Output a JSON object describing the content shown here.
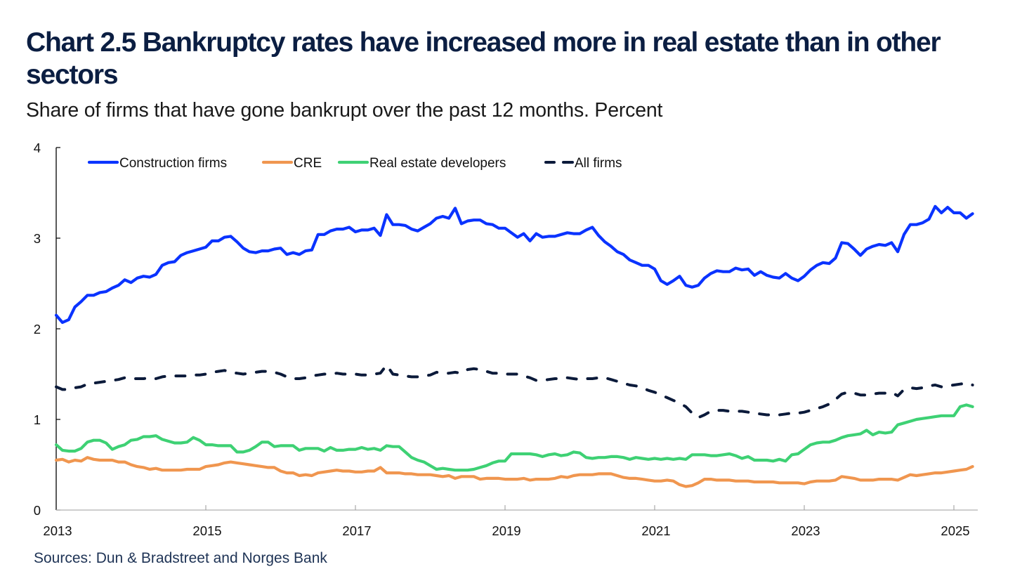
{
  "chart_data": {
    "type": "line",
    "title": "Chart 2.5 Bankruptcy rates have increased more in real estate than in other sectors",
    "subtitle": "Share of firms that have gone bankrupt over the past 12 months. Percent",
    "source": "Sources: Dun & Bradstreet and Norges Bank",
    "xlabel": "",
    "ylabel": "",
    "x_start": "2013-01",
    "x_frequency": "monthly",
    "xlim": [
      2013.0,
      2025.4
    ],
    "ylim": [
      0,
      4
    ],
    "yticks": [
      "0",
      "1",
      "2",
      "3",
      "4"
    ],
    "xticks": [
      "2013",
      "2015",
      "2017",
      "2019",
      "2021",
      "2023",
      "2025"
    ],
    "xtick_values": [
      2013,
      2015,
      2017,
      2019,
      2021,
      2023,
      2025
    ],
    "grid": false,
    "legend_position": "top-left",
    "series": [
      {
        "name": "Construction firms",
        "color": "#0a33ff",
        "dashed": false,
        "values": [
          2.15,
          2.07,
          2.1,
          2.24,
          2.3,
          2.37,
          2.37,
          2.4,
          2.41,
          2.45,
          2.48,
          2.54,
          2.51,
          2.56,
          2.58,
          2.57,
          2.6,
          2.7,
          2.73,
          2.74,
          2.81,
          2.84,
          2.86,
          2.88,
          2.9,
          2.97,
          2.97,
          3.01,
          3.02,
          2.96,
          2.89,
          2.85,
          2.84,
          2.86,
          2.86,
          2.88,
          2.89,
          2.82,
          2.84,
          2.82,
          2.86,
          2.87,
          3.04,
          3.04,
          3.08,
          3.1,
          3.1,
          3.12,
          3.07,
          3.09,
          3.09,
          3.11,
          3.03,
          3.26,
          3.15,
          3.15,
          3.14,
          3.1,
          3.08,
          3.12,
          3.16,
          3.22,
          3.24,
          3.22,
          3.33,
          3.16,
          3.19,
          3.2,
          3.2,
          3.16,
          3.15,
          3.11,
          3.11,
          3.06,
          3.01,
          3.05,
          2.97,
          3.05,
          3.01,
          3.02,
          3.02,
          3.04,
          3.06,
          3.05,
          3.05,
          3.09,
          3.12,
          3.03,
          2.96,
          2.91,
          2.85,
          2.82,
          2.76,
          2.73,
          2.7,
          2.7,
          2.66,
          2.53,
          2.49,
          2.53,
          2.58,
          2.48,
          2.46,
          2.48,
          2.56,
          2.61,
          2.64,
          2.63,
          2.63,
          2.67,
          2.65,
          2.66,
          2.59,
          2.63,
          2.59,
          2.57,
          2.56,
          2.61,
          2.56,
          2.53,
          2.58,
          2.65,
          2.7,
          2.73,
          2.72,
          2.78,
          2.95,
          2.94,
          2.88,
          2.81,
          2.88,
          2.91,
          2.93,
          2.92,
          2.95,
          2.85,
          3.04,
          3.15,
          3.15,
          3.17,
          3.21,
          3.35,
          3.28,
          3.34,
          3.28,
          3.28,
          3.22,
          3.27
        ]
      },
      {
        "name": "CRE",
        "color": "#f0964f",
        "dashed": false,
        "values": [
          0.55,
          0.56,
          0.53,
          0.55,
          0.54,
          0.58,
          0.56,
          0.55,
          0.55,
          0.55,
          0.53,
          0.53,
          0.5,
          0.48,
          0.47,
          0.45,
          0.46,
          0.44,
          0.44,
          0.44,
          0.44,
          0.45,
          0.45,
          0.45,
          0.48,
          0.49,
          0.5,
          0.52,
          0.53,
          0.52,
          0.51,
          0.5,
          0.49,
          0.48,
          0.47,
          0.47,
          0.43,
          0.41,
          0.41,
          0.38,
          0.39,
          0.38,
          0.41,
          0.42,
          0.43,
          0.44,
          0.43,
          0.43,
          0.42,
          0.42,
          0.43,
          0.43,
          0.47,
          0.41,
          0.41,
          0.41,
          0.4,
          0.4,
          0.39,
          0.39,
          0.39,
          0.38,
          0.37,
          0.38,
          0.35,
          0.37,
          0.37,
          0.37,
          0.34,
          0.35,
          0.35,
          0.35,
          0.34,
          0.34,
          0.34,
          0.35,
          0.33,
          0.34,
          0.34,
          0.34,
          0.35,
          0.37,
          0.36,
          0.38,
          0.39,
          0.39,
          0.39,
          0.4,
          0.4,
          0.4,
          0.38,
          0.36,
          0.35,
          0.35,
          0.34,
          0.33,
          0.32,
          0.32,
          0.33,
          0.32,
          0.28,
          0.26,
          0.27,
          0.3,
          0.34,
          0.34,
          0.33,
          0.33,
          0.33,
          0.32,
          0.32,
          0.32,
          0.31,
          0.31,
          0.31,
          0.31,
          0.3,
          0.3,
          0.3,
          0.3,
          0.29,
          0.31,
          0.32,
          0.32,
          0.32,
          0.33,
          0.37,
          0.36,
          0.35,
          0.33,
          0.33,
          0.33,
          0.34,
          0.34,
          0.34,
          0.33,
          0.36,
          0.39,
          0.38,
          0.39,
          0.4,
          0.41,
          0.41,
          0.42,
          0.43,
          0.44,
          0.45,
          0.48
        ]
      },
      {
        "name": "Real estate developers",
        "color": "#3ed174",
        "dashed": false,
        "values": [
          0.72,
          0.66,
          0.65,
          0.65,
          0.68,
          0.75,
          0.77,
          0.77,
          0.74,
          0.67,
          0.7,
          0.72,
          0.77,
          0.78,
          0.81,
          0.81,
          0.82,
          0.78,
          0.76,
          0.74,
          0.74,
          0.75,
          0.8,
          0.77,
          0.72,
          0.72,
          0.71,
          0.71,
          0.71,
          0.64,
          0.64,
          0.66,
          0.7,
          0.75,
          0.75,
          0.7,
          0.71,
          0.71,
          0.71,
          0.66,
          0.68,
          0.68,
          0.68,
          0.65,
          0.69,
          0.66,
          0.66,
          0.67,
          0.67,
          0.69,
          0.67,
          0.68,
          0.66,
          0.71,
          0.7,
          0.7,
          0.64,
          0.58,
          0.55,
          0.53,
          0.49,
          0.45,
          0.46,
          0.45,
          0.44,
          0.44,
          0.44,
          0.45,
          0.47,
          0.49,
          0.52,
          0.54,
          0.54,
          0.62,
          0.62,
          0.62,
          0.62,
          0.61,
          0.59,
          0.61,
          0.62,
          0.6,
          0.61,
          0.64,
          0.63,
          0.58,
          0.57,
          0.58,
          0.58,
          0.59,
          0.59,
          0.58,
          0.56,
          0.58,
          0.57,
          0.56,
          0.57,
          0.56,
          0.57,
          0.56,
          0.57,
          0.56,
          0.61,
          0.61,
          0.61,
          0.6,
          0.6,
          0.61,
          0.62,
          0.6,
          0.57,
          0.59,
          0.55,
          0.55,
          0.55,
          0.54,
          0.56,
          0.54,
          0.61,
          0.62,
          0.67,
          0.72,
          0.74,
          0.75,
          0.75,
          0.77,
          0.8,
          0.82,
          0.83,
          0.84,
          0.88,
          0.83,
          0.86,
          0.85,
          0.86,
          0.94,
          0.96,
          0.98,
          1.0,
          1.01,
          1.02,
          1.03,
          1.04,
          1.04,
          1.04,
          1.14,
          1.16,
          1.14
        ]
      },
      {
        "name": "All firms",
        "color": "#0b1a3a",
        "dashed": true,
        "values": [
          1.36,
          1.33,
          1.33,
          1.35,
          1.36,
          1.39,
          1.4,
          1.41,
          1.42,
          1.43,
          1.44,
          1.46,
          1.45,
          1.45,
          1.45,
          1.46,
          1.45,
          1.47,
          1.48,
          1.48,
          1.48,
          1.48,
          1.49,
          1.49,
          1.5,
          1.52,
          1.53,
          1.54,
          1.52,
          1.51,
          1.5,
          1.51,
          1.52,
          1.53,
          1.53,
          1.52,
          1.5,
          1.47,
          1.45,
          1.45,
          1.46,
          1.48,
          1.49,
          1.5,
          1.5,
          1.51,
          1.5,
          1.5,
          1.5,
          1.49,
          1.49,
          1.5,
          1.51,
          1.6,
          1.5,
          1.49,
          1.48,
          1.47,
          1.47,
          1.48,
          1.49,
          1.52,
          1.51,
          1.51,
          1.52,
          1.51,
          1.55,
          1.56,
          1.55,
          1.53,
          1.51,
          1.51,
          1.5,
          1.5,
          1.5,
          1.48,
          1.46,
          1.43,
          1.43,
          1.44,
          1.45,
          1.45,
          1.46,
          1.45,
          1.44,
          1.45,
          1.45,
          1.46,
          1.46,
          1.44,
          1.42,
          1.4,
          1.38,
          1.37,
          1.35,
          1.32,
          1.3,
          1.27,
          1.24,
          1.21,
          1.18,
          1.14,
          1.07,
          1.02,
          1.05,
          1.09,
          1.1,
          1.1,
          1.09,
          1.09,
          1.09,
          1.08,
          1.07,
          1.06,
          1.05,
          1.05,
          1.05,
          1.06,
          1.07,
          1.07,
          1.08,
          1.1,
          1.12,
          1.14,
          1.17,
          1.22,
          1.28,
          1.3,
          1.29,
          1.27,
          1.27,
          1.28,
          1.29,
          1.29,
          1.3,
          1.26,
          1.33,
          1.35,
          1.34,
          1.35,
          1.37,
          1.38,
          1.36,
          1.37,
          1.38,
          1.39,
          1.4,
          1.38
        ]
      }
    ]
  }
}
